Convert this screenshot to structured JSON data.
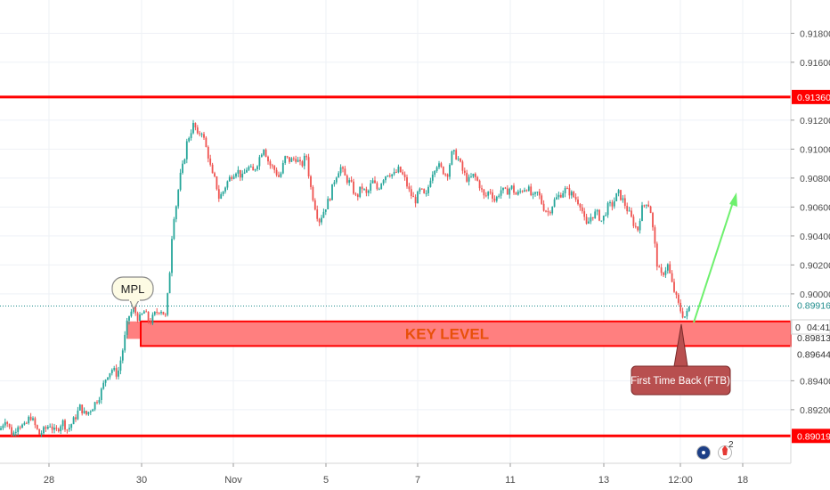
{
  "chart_data": {
    "type": "candlestick",
    "instrument_prices_axis": {
      "ticks": [
        "0.91800",
        "0.91600",
        "0.91200",
        "0.91000",
        "0.90800",
        "0.90600",
        "0.90400",
        "0.90200",
        "0.90000",
        "0.89400",
        "0.89200"
      ],
      "ylim": [
        0.8883,
        0.9203
      ]
    },
    "x_ticks": [
      "28",
      "30",
      "Nov",
      "5",
      "7",
      "11",
      "13",
      "12:00",
      "18"
    ],
    "horizontal_levels": [
      {
        "value": 0.9136,
        "label": "0.91360",
        "color": "#ff0000"
      },
      {
        "value": 0.89019,
        "label": "0.89019",
        "color": "#ff0000"
      }
    ],
    "current_price": {
      "value": 0.89916,
      "label": "0.89916"
    },
    "countdown": {
      "prefix": "0",
      "time": "04:41"
    },
    "key_zone": {
      "top_label": "0.89813",
      "bottom_label": "0.89644",
      "top": 0.8981,
      "bottom": 0.8964,
      "text": "KEY LEVEL"
    },
    "annotations": {
      "mpl": "MPL",
      "ftb": "First Time Back (FTB)"
    },
    "event_badges": {
      "count": "2"
    },
    "colors": {
      "up": "#26a69a",
      "down": "#ef5350",
      "level": "#ff0000",
      "zone_fill": "#ff7f7f",
      "zone_text": "#e8500a",
      "arrow": "#6df06d",
      "current": "#1e8c8c"
    },
    "path": [
      [
        0,
        0.8906
      ],
      [
        6,
        0.8914
      ],
      [
        10,
        0.8908
      ],
      [
        14,
        0.8902
      ],
      [
        20,
        0.891
      ],
      [
        28,
        0.8908
      ],
      [
        34,
        0.8916
      ],
      [
        40,
        0.8908
      ],
      [
        44,
        0.8903
      ],
      [
        50,
        0.8906
      ],
      [
        56,
        0.891
      ],
      [
        62,
        0.8904
      ],
      [
        70,
        0.8912
      ],
      [
        76,
        0.8906
      ],
      [
        84,
        0.8914
      ],
      [
        90,
        0.8922
      ],
      [
        96,
        0.8916
      ],
      [
        104,
        0.8922
      ],
      [
        112,
        0.893
      ],
      [
        120,
        0.8944
      ],
      [
        126,
        0.8948
      ],
      [
        132,
        0.8944
      ],
      [
        138,
        0.8962
      ],
      [
        144,
        0.8984
      ],
      [
        150,
        0.899
      ],
      [
        156,
        0.8982
      ],
      [
        162,
        0.8988
      ],
      [
        168,
        0.898
      ],
      [
        174,
        0.8986
      ],
      [
        180,
        0.899
      ],
      [
        186,
        0.8984
      ],
      [
        190,
        0.901
      ],
      [
        194,
        0.905
      ],
      [
        198,
        0.9062
      ],
      [
        202,
        0.908
      ],
      [
        206,
        0.909
      ],
      [
        210,
        0.9105
      ],
      [
        214,
        0.9112
      ],
      [
        218,
        0.9118
      ],
      [
        222,
        0.9108
      ],
      [
        226,
        0.9114
      ],
      [
        230,
        0.9104
      ],
      [
        234,
        0.9095
      ],
      [
        238,
        0.9082
      ],
      [
        242,
        0.9078
      ],
      [
        246,
        0.9066
      ],
      [
        250,
        0.907
      ],
      [
        254,
        0.9076
      ],
      [
        260,
        0.9082
      ],
      [
        266,
        0.9086
      ],
      [
        272,
        0.908
      ],
      [
        278,
        0.9088
      ],
      [
        284,
        0.9084
      ],
      [
        290,
        0.9092
      ],
      [
        296,
        0.9102
      ],
      [
        302,
        0.909
      ],
      [
        308,
        0.9086
      ],
      [
        314,
        0.908
      ],
      [
        320,
        0.9094
      ],
      [
        326,
        0.9092
      ],
      [
        332,
        0.9094
      ],
      [
        338,
        0.9088
      ],
      [
        344,
        0.9096
      ],
      [
        348,
        0.9076
      ],
      [
        354,
        0.906
      ],
      [
        358,
        0.905
      ],
      [
        364,
        0.9058
      ],
      [
        370,
        0.9066
      ],
      [
        376,
        0.908
      ],
      [
        382,
        0.9088
      ],
      [
        388,
        0.908
      ],
      [
        394,
        0.9076
      ],
      [
        400,
        0.9066
      ],
      [
        406,
        0.9074
      ],
      [
        412,
        0.9068
      ],
      [
        418,
        0.9078
      ],
      [
        424,
        0.9072
      ],
      [
        430,
        0.908
      ],
      [
        436,
        0.9084
      ],
      [
        442,
        0.9082
      ],
      [
        448,
        0.9086
      ],
      [
        454,
        0.908
      ],
      [
        460,
        0.907
      ],
      [
        466,
        0.9064
      ],
      [
        472,
        0.9072
      ],
      [
        478,
        0.9066
      ],
      [
        484,
        0.9082
      ],
      [
        490,
        0.909
      ],
      [
        496,
        0.9086
      ],
      [
        502,
        0.9082
      ],
      [
        508,
        0.9098
      ],
      [
        514,
        0.9094
      ],
      [
        520,
        0.9084
      ],
      [
        526,
        0.9078
      ],
      [
        532,
        0.9082
      ],
      [
        538,
        0.9076
      ],
      [
        544,
        0.9066
      ],
      [
        550,
        0.9072
      ],
      [
        556,
        0.9064
      ],
      [
        562,
        0.9072
      ],
      [
        568,
        0.907
      ],
      [
        574,
        0.9074
      ],
      [
        580,
        0.9068
      ],
      [
        586,
        0.9072
      ],
      [
        592,
        0.9074
      ],
      [
        598,
        0.9066
      ],
      [
        604,
        0.907
      ],
      [
        610,
        0.906
      ],
      [
        616,
        0.9056
      ],
      [
        622,
        0.9064
      ],
      [
        628,
        0.9068
      ],
      [
        634,
        0.9072
      ],
      [
        640,
        0.907
      ],
      [
        646,
        0.9066
      ],
      [
        652,
        0.9062
      ],
      [
        658,
        0.9046
      ],
      [
        664,
        0.9054
      ],
      [
        670,
        0.9056
      ],
      [
        676,
        0.905
      ],
      [
        682,
        0.906
      ],
      [
        688,
        0.9062
      ],
      [
        694,
        0.907
      ],
      [
        700,
        0.9064
      ],
      [
        706,
        0.9056
      ],
      [
        712,
        0.9048
      ],
      [
        716,
        0.9044
      ],
      [
        720,
        0.9058
      ],
      [
        726,
        0.9064
      ],
      [
        730,
        0.906
      ],
      [
        734,
        0.904
      ],
      [
        738,
        0.902
      ],
      [
        742,
        0.9012
      ],
      [
        746,
        0.9016
      ],
      [
        750,
        0.902
      ],
      [
        754,
        0.9008
      ],
      [
        758,
        0.9
      ],
      [
        762,
        0.8992
      ],
      [
        766,
        0.8986
      ],
      [
        770,
        0.8984
      ],
      [
        774,
        0.8991
      ]
    ]
  }
}
